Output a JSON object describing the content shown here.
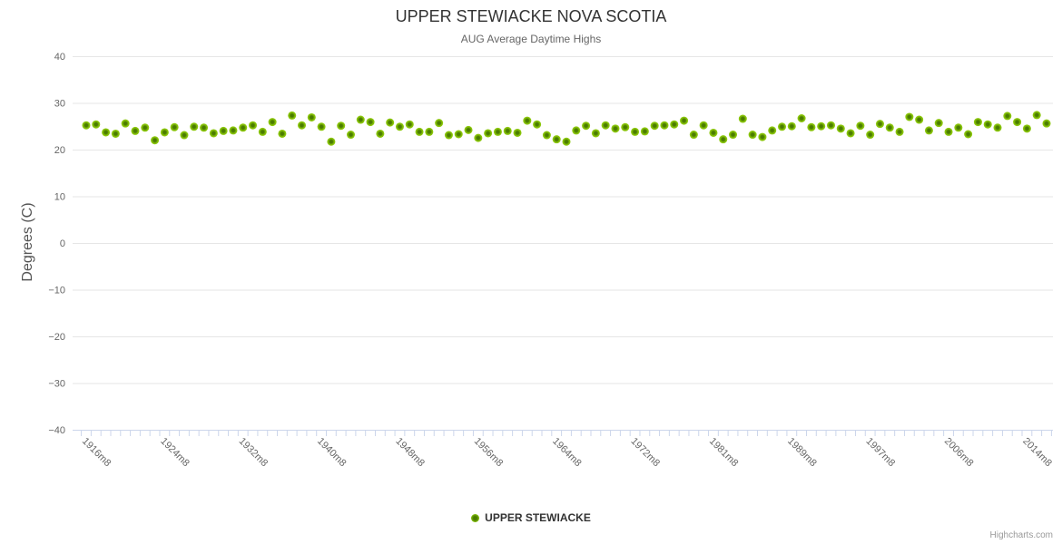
{
  "chart_data": {
    "type": "scatter",
    "title": "UPPER STEWIACKE NOVA SCOTIA",
    "subtitle": "AUG Average Daytime Highs",
    "ylabel": "Degrees (C)",
    "ylim": [
      -40,
      40
    ],
    "ytick_labels": [
      "40",
      "30",
      "20",
      "10",
      "0",
      "−10",
      "−20",
      "−30",
      "−40"
    ],
    "x_tick_labels": [
      "1916m8",
      "1924m8",
      "1932m8",
      "1940m8",
      "1948m8",
      "1956m8",
      "1964m8",
      "1972m8",
      "1981m8",
      "1989m8",
      "1997m8",
      "2006m8",
      "2014m8"
    ],
    "x_label_every": 8,
    "grid": "horizontal",
    "legend_position": "bottom-center",
    "series": [
      {
        "name": "UPPER STEWIACKE",
        "marker_color_outer": "#8bc70a",
        "marker_color_inner": "#4a7c00",
        "values": [
          25.2,
          25.4,
          23.7,
          23.4,
          25.6,
          24.0,
          24.7,
          22.0,
          23.7,
          24.8,
          23.1,
          24.9,
          24.7,
          23.5,
          24.0,
          24.1,
          24.7,
          25.2,
          23.8,
          25.9,
          23.4,
          27.3,
          25.2,
          26.9,
          24.9,
          21.7,
          25.1,
          23.2,
          26.4,
          25.9,
          23.4,
          25.8,
          24.9,
          25.4,
          23.8,
          23.8,
          25.7,
          23.1,
          23.3,
          24.2,
          22.5,
          23.5,
          23.8,
          24.0,
          23.6,
          26.2,
          25.4,
          23.1,
          22.2,
          21.7,
          24.1,
          25.1,
          23.5,
          25.2,
          24.5,
          24.8,
          23.8,
          23.9,
          25.1,
          25.2,
          25.4,
          26.2,
          23.2,
          25.2,
          23.6,
          22.2,
          23.2,
          26.6,
          23.2,
          22.7,
          24.1,
          24.9,
          25.0,
          26.7,
          24.8,
          25.0,
          25.2,
          24.5,
          23.5,
          25.1,
          23.2,
          25.5,
          24.7,
          23.8,
          27.0,
          26.4,
          24.1,
          25.7,
          23.8,
          24.7,
          23.3,
          25.9,
          25.4,
          24.7,
          27.2,
          25.9,
          24.5,
          27.4,
          25.6
        ]
      }
    ],
    "credit": "Highcharts.com"
  },
  "colors": {
    "title": "#333333",
    "subtitle": "#666666",
    "axis_label": "#666666",
    "grid_line": "#e6e6e6",
    "axis_line": "#ccd6eb",
    "background": "#ffffff",
    "credit": "#999999"
  }
}
